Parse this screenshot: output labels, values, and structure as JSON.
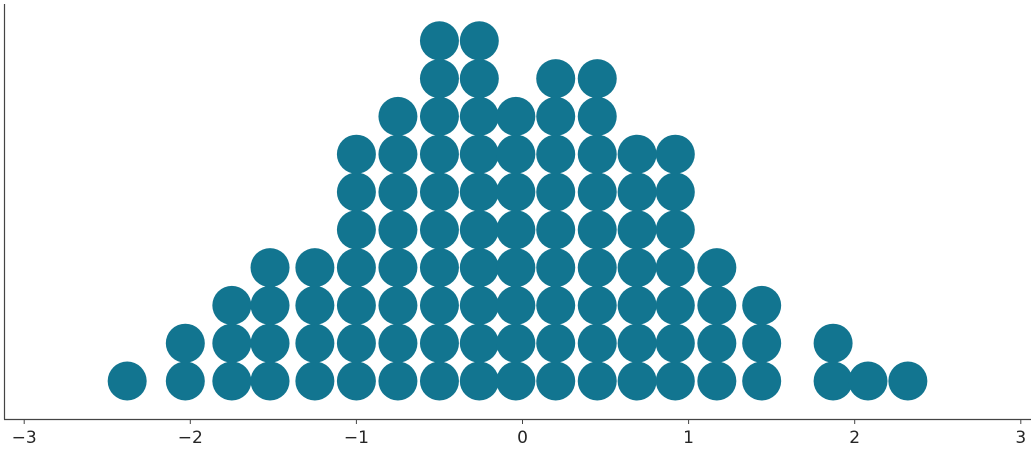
{
  "chart_data": {
    "type": "scatter",
    "subtype": "dot-plot",
    "title": "",
    "xlabel": "",
    "ylabel": "",
    "xlim": [
      -3.1,
      3.05
    ],
    "xticks": [
      -3,
      -2,
      -1,
      0,
      1,
      2,
      3
    ],
    "xtick_labels": [
      "−3",
      "−2",
      "−1",
      "0",
      "1",
      "2",
      "3"
    ],
    "grid": false,
    "dot_color": "#127590",
    "columns": [
      {
        "x": -2.38,
        "count": 1
      },
      {
        "x": -2.03,
        "count": 2
      },
      {
        "x": -1.75,
        "count": 3
      },
      {
        "x": -1.52,
        "count": 4
      },
      {
        "x": -1.25,
        "count": 4
      },
      {
        "x": -1.0,
        "count": 7
      },
      {
        "x": -0.75,
        "count": 8
      },
      {
        "x": -0.5,
        "count": 10
      },
      {
        "x": -0.26,
        "count": 10
      },
      {
        "x": -0.04,
        "count": 8
      },
      {
        "x": 0.2,
        "count": 9
      },
      {
        "x": 0.45,
        "count": 9
      },
      {
        "x": 0.69,
        "count": 7
      },
      {
        "x": 0.92,
        "count": 7
      },
      {
        "x": 1.17,
        "count": 4
      },
      {
        "x": 1.44,
        "count": 3
      },
      {
        "x": 1.87,
        "count": 2
      },
      {
        "x": 2.08,
        "count": 1
      },
      {
        "x": 2.32,
        "count": 1
      }
    ]
  }
}
